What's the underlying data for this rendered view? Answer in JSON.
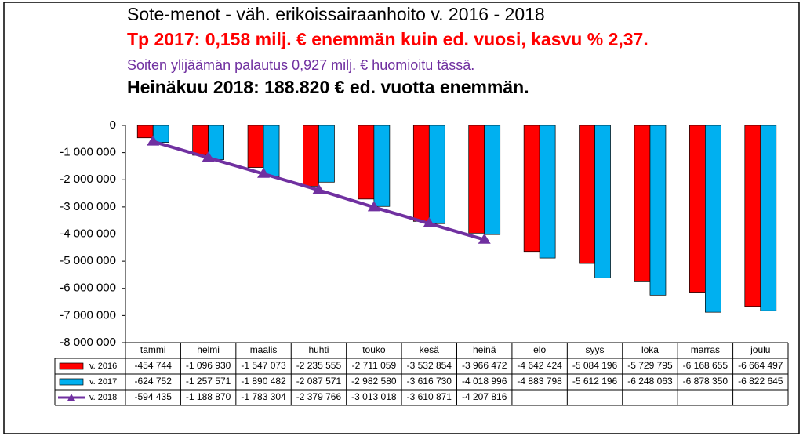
{
  "chart_data": {
    "type": "bar",
    "title": "Sote-menot - väh. erikoissairaanhoito v. 2016 - 2018",
    "annotations": [
      "Tp 2017: 0,158 milj. € enemmän kuin ed. vuosi, kasvu % 2,37.",
      "Soiten ylijäämän palautus 0,927 milj. € huomioitu tässä.",
      "Heinäkuu 2018: 188.820 € ed. vuotta enemmän."
    ],
    "categories": [
      "tammi",
      "helmi",
      "maalis",
      "huhti",
      "touko",
      "kesä",
      "heinä",
      "elo",
      "syys",
      "loka",
      "marras",
      "joulu"
    ],
    "series": [
      {
        "name": "v. 2016",
        "type": "bar",
        "color": "#ff0000",
        "values": [
          -454744,
          -1096930,
          -1547073,
          -2235555,
          -2711059,
          -3532854,
          -3966472,
          -4642424,
          -5084196,
          -5729795,
          -6168655,
          -6664497
        ],
        "value_labels": [
          "-454 744",
          "-1 096 930",
          "-1 547 073",
          "-2 235 555",
          "-2 711 059",
          "-3 532 854",
          "-3 966 472",
          "-4 642 424",
          "-5 084 196",
          "-5 729 795",
          "-6 168 655",
          "-6 664 497"
        ]
      },
      {
        "name": "v. 2017",
        "type": "bar",
        "color": "#00b0f0",
        "values": [
          -624752,
          -1257571,
          -1890482,
          -2087571,
          -2982580,
          -3616730,
          -4018996,
          -4883798,
          -5612196,
          -6248063,
          -6878350,
          -6822645
        ],
        "value_labels": [
          "-624 752",
          "-1 257 571",
          "-1 890 482",
          "-2 087 571",
          "-2 982 580",
          "-3 616 730",
          "-4 018 996",
          "-4 883 798",
          "-5 612 196",
          "-6 248 063",
          "-6 878 350",
          "-6 822 645"
        ]
      },
      {
        "name": "v. 2018",
        "type": "line",
        "color": "#7030a0",
        "values": [
          -594435,
          -1188870,
          -1783304,
          -2379766,
          -3013018,
          -3610871,
          -4207816,
          null,
          null,
          null,
          null,
          null
        ],
        "value_labels": [
          "-594 435",
          "-1 188 870",
          "-1 783 304",
          "-2 379 766",
          "-3 013 018",
          "-3 610 871",
          "-4 207 816",
          null,
          null,
          null,
          null,
          null
        ]
      }
    ],
    "ylim": [
      -8000000,
      0
    ],
    "yticks": [
      0,
      {
        "value": -1000000,
        "label": "-1 000 000"
      },
      {
        "value": -2000000,
        "label": "-2 000 000"
      },
      {
        "value": -3000000,
        "label": "-3 000 000"
      },
      {
        "value": -4000000,
        "label": "-4 000 000"
      },
      {
        "value": -5000000,
        "label": "-5 000 000"
      },
      {
        "value": -6000000,
        "label": "-6 000 000"
      },
      {
        "value": -7000000,
        "label": "-7 000 000"
      },
      {
        "value": -8000000,
        "label": "-8 000 000"
      }
    ]
  }
}
